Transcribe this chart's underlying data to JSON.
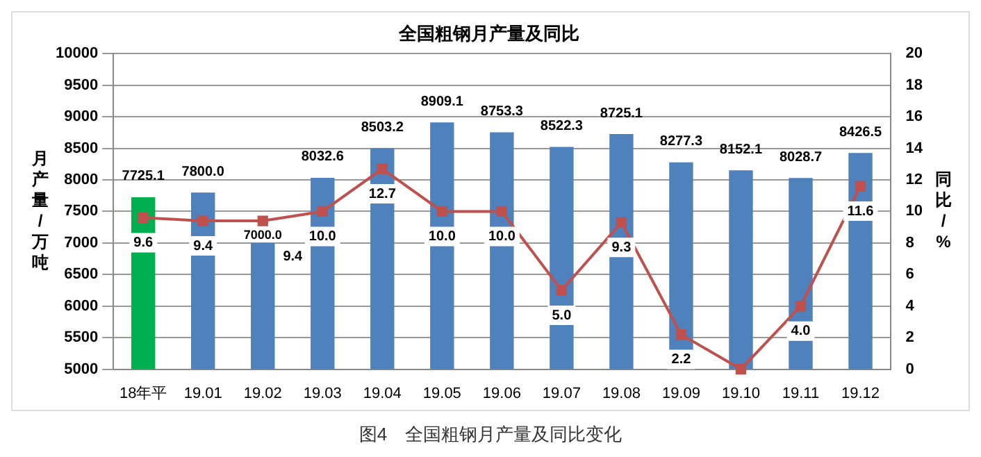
{
  "chart_data": {
    "type": "bar",
    "title": "全国粗钢月产量及同比",
    "categories": [
      "18年平",
      "19.01",
      "19.02",
      "19.03",
      "19.04",
      "19.05",
      "19.06",
      "19.07",
      "19.08",
      "19.09",
      "19.10",
      "19.11",
      "19.12"
    ],
    "series": [
      {
        "colors": [
          "#00b050",
          "#4f81bd",
          "#4f81bd",
          "#4f81bd",
          "#4f81bd",
          "#4f81bd",
          "#4f81bd",
          "#4f81bd",
          "#4f81bd",
          "#4f81bd",
          "#4f81bd",
          "#4f81bd",
          "#4f81bd"
        ],
        "values": [
          7725.1,
          7800.0,
          7000.0,
          8032.6,
          8503.2,
          8909.1,
          8753.3,
          8522.3,
          8725.1,
          8277.3,
          8152.1,
          8028.7,
          8426.5
        ],
        "value_labels": [
          "7725.1",
          "7800.0",
          "7000.0",
          "8032.6",
          "8503.2",
          "8909.1",
          "8753.3",
          "8522.3",
          "8725.1",
          "8277.3",
          "8152.1",
          "8028.7",
          "8426.5"
        ]
      },
      {
        "type": "line",
        "axis": "y2",
        "color": "#c0504d",
        "marker": "square",
        "values": [
          9.6,
          9.4,
          9.4,
          10.0,
          12.7,
          10.0,
          10.0,
          5.0,
          9.3,
          2.2,
          0,
          4.0,
          11.6
        ],
        "value_labels": [
          "9.6",
          "9.4",
          "9.4",
          "10.0",
          "12.7",
          "10.0",
          "10.0",
          "5.0",
          "9.3",
          "2.2",
          null,
          "4.0",
          "11.6"
        ]
      }
    ],
    "ylabel": "月产量/万吨",
    "y2label": "同比/%",
    "ylim": [
      5000,
      10000
    ],
    "yticks": [
      5000,
      5500,
      6000,
      6500,
      7000,
      7500,
      8000,
      8500,
      9000,
      9500,
      10000
    ],
    "y2lim": [
      0,
      20
    ],
    "y2ticks": [
      0,
      2,
      4,
      6,
      8,
      10,
      12,
      14,
      16,
      18,
      20
    ],
    "grid": "y",
    "legend": false,
    "annotations": [
      "图4　全国粗钢月产量及同比变化"
    ]
  }
}
